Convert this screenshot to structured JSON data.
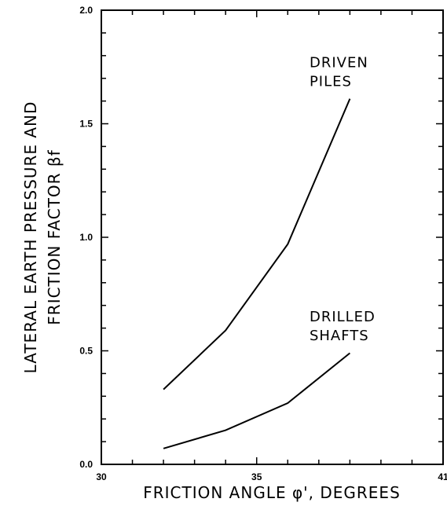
{
  "chart_data": {
    "type": "line",
    "xlabel": "FRICTION ANGLE φ', DEGREES",
    "ylabel": [
      "LATERAL EARTH PRESSURE AND",
      "FRICTION FACTOR  βf"
    ],
    "xlim": [
      30,
      41
    ],
    "ylim": [
      0.0,
      2.0
    ],
    "x_ticks": [
      30,
      35,
      41
    ],
    "x_tick_labels": [
      "30",
      "35",
      "41"
    ],
    "y_ticks": [
      0.0,
      0.5,
      1.0,
      1.5,
      2.0
    ],
    "y_tick_labels": [
      "0.0",
      "0.5",
      "1.0",
      "1.5",
      "2.0"
    ],
    "grid": false,
    "series": [
      {
        "label_lines": [
          "DRIVEN",
          "PILES"
        ],
        "x": [
          32,
          34,
          36,
          38
        ],
        "y": [
          0.33,
          0.59,
          0.97,
          1.61
        ]
      },
      {
        "label_lines": [
          "DRILLED",
          "SHAFTS"
        ],
        "x": [
          32,
          34,
          36,
          38
        ],
        "y": [
          0.07,
          0.15,
          0.27,
          0.49
        ]
      }
    ]
  }
}
